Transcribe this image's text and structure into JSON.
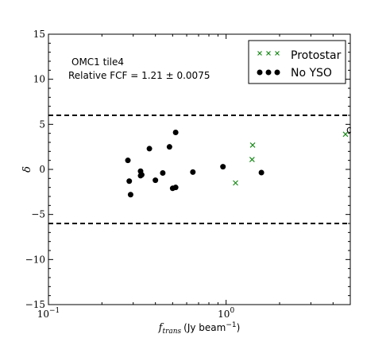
{
  "chart_data": {
    "type": "scatter",
    "title": "",
    "xlabel": "f_trans (Jy beam^-1)",
    "xlabel_parts": {
      "symbol": "f",
      "subscript": "trans",
      "unit": "(Jy beam",
      "exponent": "−1",
      "close": ")"
    },
    "ylabel": "δ",
    "xscale": "log",
    "xlim": [
      0.1,
      5.0
    ],
    "ylim": [
      -15,
      15
    ],
    "x_ticks": [
      {
        "value": 0.1,
        "base": "10",
        "exp": "−1"
      },
      {
        "value": 1,
        "base": "10",
        "exp": "0"
      }
    ],
    "y_ticks": [
      {
        "value": -15,
        "label": "−15"
      },
      {
        "value": -10,
        "label": "−10"
      },
      {
        "value": -5,
        "label": "−5"
      },
      {
        "value": 0,
        "label": "0"
      },
      {
        "value": 5,
        "label": "5"
      },
      {
        "value": 10,
        "label": "10"
      },
      {
        "value": 15,
        "label": "15"
      }
    ],
    "annotations": {
      "line1": "OMC1 tile4",
      "line2": "Relative FCF = 1.21 ± 0.0075",
      "point_label": "c"
    },
    "reference_lines": [
      6,
      -6
    ],
    "legend": {
      "placement": "top-right",
      "entries": [
        "Protostar",
        "No YSO"
      ]
    },
    "series": [
      {
        "name": "Protostar",
        "marker": "x",
        "color": "#1a8a1a",
        "points": [
          {
            "x": 1.13,
            "y": -1.5
          },
          {
            "x": 1.41,
            "y": 2.7
          },
          {
            "x": 1.4,
            "y": 1.1
          },
          {
            "x": 4.7,
            "y": 3.9,
            "label": "c"
          }
        ]
      },
      {
        "name": "No YSO",
        "marker": "o",
        "color": "#000000",
        "points": [
          {
            "x": 0.28,
            "y": 1.0
          },
          {
            "x": 0.285,
            "y": -1.3
          },
          {
            "x": 0.29,
            "y": -2.8
          },
          {
            "x": 0.33,
            "y": -0.2
          },
          {
            "x": 0.33,
            "y": -0.7
          },
          {
            "x": 0.335,
            "y": -0.6
          },
          {
            "x": 0.37,
            "y": 2.3
          },
          {
            "x": 0.4,
            "y": -1.2
          },
          {
            "x": 0.44,
            "y": -0.4
          },
          {
            "x": 0.48,
            "y": 2.5
          },
          {
            "x": 0.5,
            "y": -2.1
          },
          {
            "x": 0.52,
            "y": -2.0
          },
          {
            "x": 0.52,
            "y": 4.1
          },
          {
            "x": 0.65,
            "y": -0.3
          },
          {
            "x": 0.96,
            "y": 0.3
          },
          {
            "x": 1.58,
            "y": -0.35
          }
        ]
      }
    ]
  }
}
